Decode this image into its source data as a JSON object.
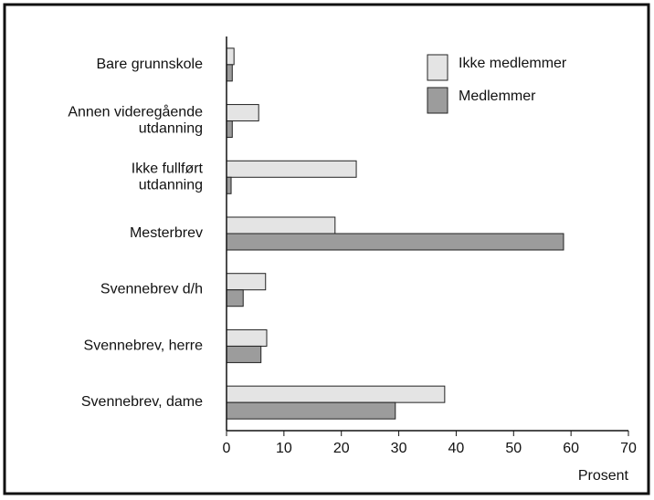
{
  "chart_data": {
    "type": "hbar",
    "categories": [
      "Bare grunnskole",
      "Annen videregående\nutdanning",
      "Ikke fullført\nutdanning",
      "Mesterbrev",
      "Svennebrev d/h",
      "Svennebrev, herre",
      "Svennebrev, dame"
    ],
    "series": [
      {
        "name": "Ikke medlemmer",
        "color": "#e4e4e4",
        "values": [
          1.3,
          5.6,
          22.6,
          18.9,
          6.8,
          7.0,
          38.0
        ]
      },
      {
        "name": "Medlemmer",
        "color": "#9c9c9c",
        "values": [
          1.0,
          1.0,
          0.8,
          58.7,
          2.9,
          6.0,
          29.4
        ]
      }
    ],
    "xlabel": "Prosent",
    "xlim": [
      0,
      70
    ],
    "xticks": [
      0,
      10,
      20,
      30,
      40,
      50,
      60,
      70
    ],
    "legend": "upper right"
  }
}
